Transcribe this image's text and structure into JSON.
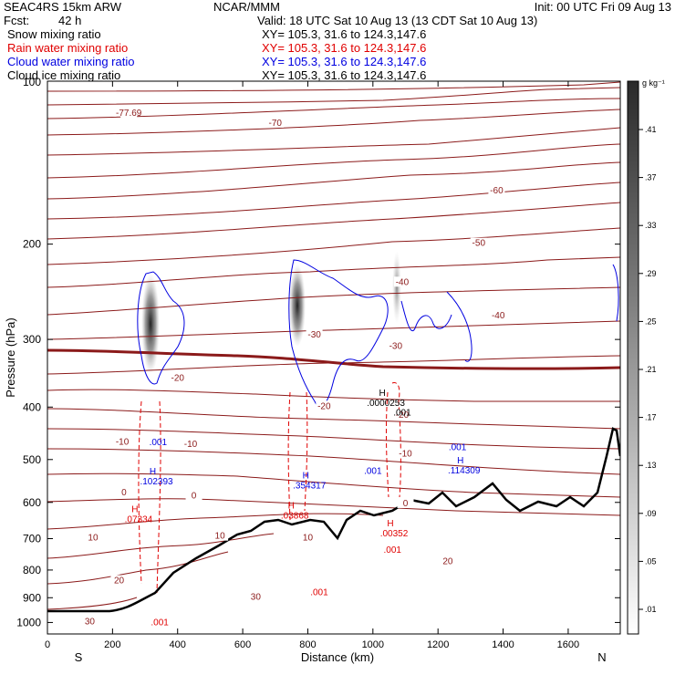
{
  "header": {
    "model": "SEAC4RS 15km ARW",
    "center": "NCAR/MMM",
    "init": "Init: 00 UTC Fri 09 Aug 13",
    "fcst_label": "Fcst:",
    "fcst_value": "42 h",
    "valid": "Valid: 18 UTC Sat 10 Aug 13 (13 CDT Sat 10 Aug 13)",
    "fields": [
      {
        "name": "Snow mixing ratio",
        "xy": "XY= 105.3, 31.6 to 124.3,147.6",
        "color": "#000000"
      },
      {
        "name": "Rain water mixing ratio",
        "xy": "XY= 105.3, 31.6 to 124.3,147.6",
        "color": "#e00000"
      },
      {
        "name": "Cloud water mixing ratio",
        "xy": "XY= 105.3, 31.6 to 124.3,147.6",
        "color": "#0000e0"
      },
      {
        "name": "Cloud ice mixing ratio",
        "xy": "XY= 105.3, 31.6 to 124.3,147.6",
        "color": "#000000"
      }
    ]
  },
  "chart_data": {
    "type": "contour cross-section",
    "xlabel": "Distance (km)",
    "ylabel": "Pressure (hPa)",
    "xlim": [
      0,
      1760
    ],
    "ylim": [
      1050,
      100
    ],
    "y_scale": "log",
    "x_ticks": [
      0,
      200,
      400,
      600,
      800,
      1000,
      1200,
      1400,
      1600
    ],
    "y_ticks": [
      200,
      300,
      400,
      500,
      600,
      700,
      800,
      900,
      1000
    ],
    "y_extra_tick_label": "100",
    "endpoint_labels": {
      "left": "S",
      "right": "N"
    },
    "colorbar": {
      "unit": "g kg⁻¹",
      "ticks": [
        ".41",
        ".37",
        ".33",
        ".29",
        ".25",
        ".21",
        ".17",
        ".13",
        ".09",
        ".05",
        ".01"
      ]
    },
    "temperature_labels": [
      {
        "text": "-77.69",
        "x": 250,
        "p": 115
      },
      {
        "text": "-70",
        "x": 700,
        "p": 120
      },
      {
        "text": "-60",
        "x": 1380,
        "p": 160
      },
      {
        "text": "-50",
        "x": 1325,
        "p": 200
      },
      {
        "text": "-40",
        "x": 1090,
        "p": 236
      },
      {
        "text": "-40",
        "x": 1385,
        "p": 272
      },
      {
        "text": "-30",
        "x": 820,
        "p": 295
      },
      {
        "text": "-30",
        "x": 1070,
        "p": 310
      },
      {
        "text": "-20",
        "x": 400,
        "p": 355
      },
      {
        "text": "-20",
        "x": 850,
        "p": 400
      },
      {
        "text": "-20",
        "x": 1090,
        "p": 415
      },
      {
        "text": "-10",
        "x": 230,
        "p": 466
      },
      {
        "text": "-10",
        "x": 440,
        "p": 470
      },
      {
        "text": "-10",
        "x": 1100,
        "p": 490
      },
      {
        "text": "0",
        "x": 235,
        "p": 578
      },
      {
        "text": "0",
        "x": 450,
        "p": 585
      },
      {
        "text": "0",
        "x": 1100,
        "p": 605
      },
      {
        "text": "10",
        "x": 140,
        "p": 700
      },
      {
        "text": "10",
        "x": 530,
        "p": 695
      },
      {
        "text": "10",
        "x": 800,
        "p": 700
      },
      {
        "text": "20",
        "x": 220,
        "p": 840
      },
      {
        "text": "20",
        "x": 1230,
        "p": 775
      },
      {
        "text": "30",
        "x": 640,
        "p": 900
      },
      {
        "text": "30",
        "x": 130,
        "p": 1000
      }
    ],
    "max_labels": [
      {
        "h": "H",
        "value": ".102393",
        "x": 335,
        "p": 545,
        "color": "#0000e0"
      },
      {
        "h": "H",
        "value": ".354317",
        "x": 805,
        "p": 555,
        "color": "#0000e0"
      },
      {
        "h": "H",
        "value": ".114309",
        "x": 1280,
        "p": 520,
        "color": "#0000e0"
      },
      {
        "h": "H",
        "value": ".07334",
        "x": 280,
        "p": 640,
        "color": "#e00000"
      },
      {
        "h": "H",
        "value": ".03868",
        "x": 760,
        "p": 630,
        "color": "#e00000"
      },
      {
        "h": "H",
        "value": ".00352",
        "x": 1065,
        "p": 680,
        "color": "#e00000"
      },
      {
        "h": "H",
        "value": ".0000253",
        "x": 1040,
        "p": 390,
        "color": "#000000"
      }
    ],
    "small_labels": [
      {
        "text": ".001",
        "x": 340,
        "p": 465,
        "color": "#0000e0"
      },
      {
        "text": ".001",
        "x": 1000,
        "p": 525,
        "color": "#0000e0"
      },
      {
        "text": ".001",
        "x": 1260,
        "p": 475,
        "color": "#0000e0"
      },
      {
        "text": ".001",
        "x": 1060,
        "p": 735,
        "color": "#e00000"
      },
      {
        "text": ".001",
        "x": 835,
        "p": 880,
        "color": "#e00000"
      },
      {
        "text": ".001",
        "x": 345,
        "p": 1000,
        "color": "#e00000"
      },
      {
        "text": ".001",
        "x": 1090,
        "p": 410,
        "color": "#000000"
      }
    ]
  }
}
